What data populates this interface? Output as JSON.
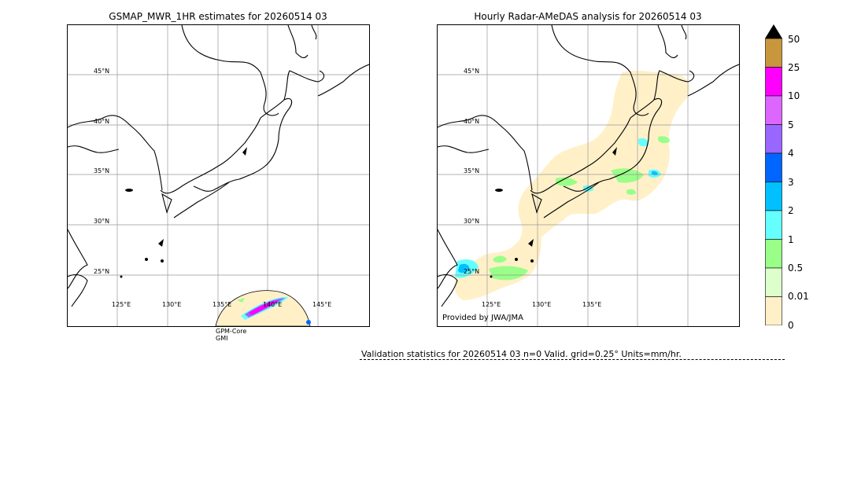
{
  "left_map": {
    "title": "GSMAP_MWR_1HR estimates for 20260514 03",
    "lat_labels": [
      "45°N",
      "40°N",
      "35°N",
      "30°N",
      "25°N"
    ],
    "lon_labels": [
      "125°E",
      "130°E",
      "135°E",
      "140°E",
      "145°E"
    ],
    "sensor_line1": "GPM-Core",
    "sensor_line2": "GMI"
  },
  "right_map": {
    "title": "Hourly Radar-AMeDAS analysis for 20260514 03",
    "lat_labels": [
      "45°N",
      "40°N",
      "35°N",
      "30°N",
      "25°N"
    ],
    "lon_labels": [
      "125°E",
      "130°E",
      "135°E"
    ],
    "credit": "Provided by JWA/JMA"
  },
  "colorbar": {
    "labels": [
      "50",
      "25",
      "10",
      "5",
      "4",
      "3",
      "2",
      "1",
      "0.5",
      "0.01",
      "0"
    ],
    "colors": [
      "#c8963c",
      "#ff00ff",
      "#dd66ff",
      "#9966ff",
      "#0066ff",
      "#00c0ff",
      "#66ffff",
      "#99ff88",
      "#ddffcc",
      "#fff0c8"
    ],
    "overflow_color": "#000000"
  },
  "validation": {
    "text": "Validation statistics for 20260514 03  n=0 Valid. grid=0.25° Units=mm/hr."
  }
}
